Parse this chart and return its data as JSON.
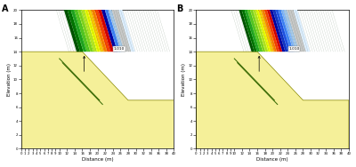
{
  "panel_A_label": "A",
  "panel_B_label": "B",
  "xlabel": "Distance (m)",
  "ylabel": "Elevation (m)",
  "xlim": [
    0,
    40
  ],
  "ylim": [
    0,
    20
  ],
  "yticks": [
    0,
    2,
    4,
    6,
    8,
    10,
    12,
    14,
    16,
    18,
    20
  ],
  "xticks_major": [
    0,
    1,
    2,
    3,
    4,
    5,
    6,
    7,
    8,
    9,
    10,
    12,
    14,
    16,
    18,
    20,
    22,
    24,
    26,
    28,
    30,
    32,
    34,
    36,
    38,
    40
  ],
  "background_color": "#ffffff",
  "fs_label": "1.010",
  "slope_fill_color": "#f5f099",
  "slope_edge_color": "#888800",
  "band_colors_A": [
    "#005500",
    "#007700",
    "#22aa22",
    "#55cc22",
    "#88dd22",
    "#bbee22",
    "#eeff00",
    "#ffcc00",
    "#ff8800",
    "#ff4400",
    "#dd0000",
    "#0000aa",
    "#4488ff",
    "#aaccee"
  ],
  "band_colors_B": [
    "#005500",
    "#007700",
    "#22aa22",
    "#55cc22",
    "#88dd22",
    "#bbee22",
    "#eeff00",
    "#ffcc00",
    "#ff8800",
    "#ff4400",
    "#dd0000",
    "#0000aa",
    "#1133cc",
    "#2255ee",
    "#4488ff",
    "#88bbff",
    "#aaccee"
  ],
  "hatch_color": "#003300",
  "gray_strip_color": "#c8c8c8",
  "arrow_color": "#000000",
  "reinf_color": "#336600",
  "fs_box_fc": "#ffffff",
  "fs_box_ec": "#888888"
}
